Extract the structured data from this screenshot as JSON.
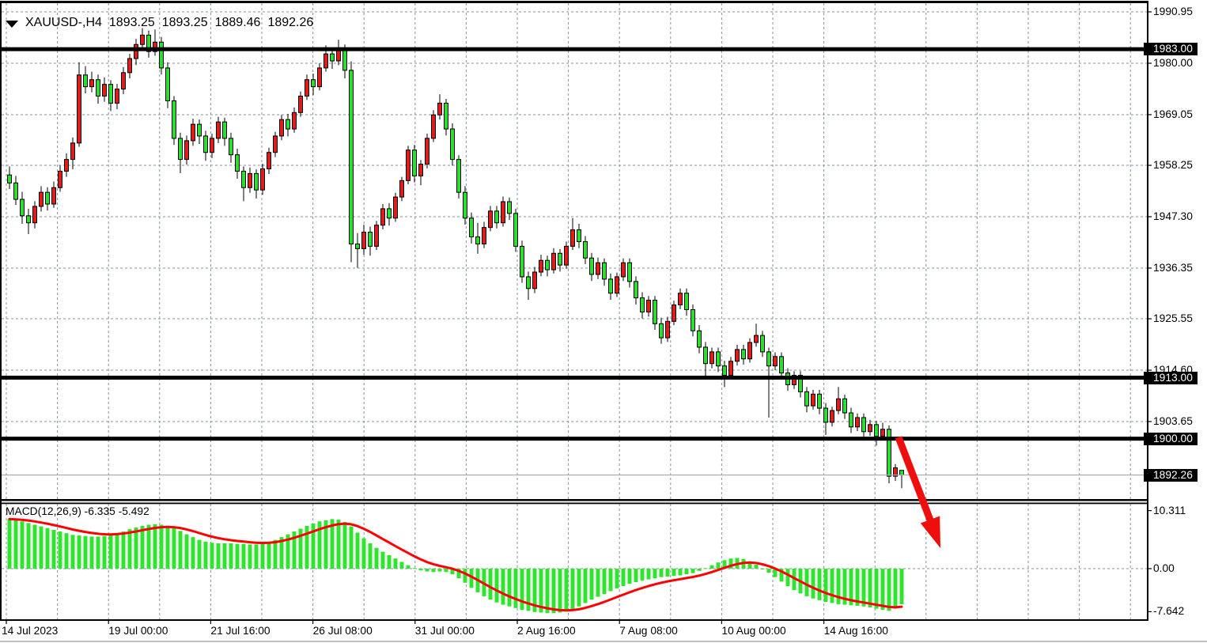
{
  "window": {
    "symbol_period": "XAUUSD-,H4",
    "open": "1893.25",
    "high": "1893.25",
    "low": "1889.46",
    "close": "1892.26"
  },
  "indicator": {
    "label": "MACD(12,26,9) -6.335 -5.492",
    "name": "MACD",
    "params": "12,26,9",
    "main_value": "-6.335",
    "signal_value": "-5.492",
    "axis_ticks": [
      {
        "label": "10.311",
        "value": 10.311
      },
      {
        "label": "0.00",
        "value": 0.0
      },
      {
        "label": "-7.642",
        "value": -7.642
      }
    ]
  },
  "price_axis": {
    "ticks": [
      {
        "label": "1990.95",
        "value": 1990.95,
        "highlighted": false
      },
      {
        "label": "1983.00",
        "value": 1983.0,
        "highlighted": true
      },
      {
        "label": "1980.00",
        "value": 1980.0,
        "highlighted": false
      },
      {
        "label": "1969.05",
        "value": 1969.05,
        "highlighted": false
      },
      {
        "label": "1958.25",
        "value": 1958.25,
        "highlighted": false
      },
      {
        "label": "1947.30",
        "value": 1947.3,
        "highlighted": false
      },
      {
        "label": "1936.35",
        "value": 1936.35,
        "highlighted": false
      },
      {
        "label": "1925.55",
        "value": 1925.55,
        "highlighted": false
      },
      {
        "label": "1914.60",
        "value": 1914.6,
        "highlighted": false
      },
      {
        "label": "1913.00",
        "value": 1913.0,
        "highlighted": true
      },
      {
        "label": "1903.65",
        "value": 1903.65,
        "highlighted": false
      },
      {
        "label": "1900.00",
        "value": 1900.0,
        "highlighted": true
      },
      {
        "label": "1892.26",
        "value": 1892.26,
        "highlighted": true
      }
    ]
  },
  "time_axis": {
    "labels": [
      "14 Jul 2023",
      "19 Jul 00:00",
      "21 Jul 16:00",
      "26 Jul 08:00",
      "31 Jul 00:00",
      "2 Aug 16:00",
      "7 Aug 08:00",
      "10 Aug 00:00",
      "14 Aug 16:00"
    ]
  },
  "levels": [
    {
      "price": 1983.0
    },
    {
      "price": 1913.0
    },
    {
      "price": 1900.0
    }
  ],
  "current_price": 1892.26,
  "colors": {
    "bull_body": "#df1d1d",
    "bear_body": "#2cdf2c",
    "macd_histogram": "#2fe62f",
    "macd_signal": "#ff0000",
    "arrow": "#ef0e0e",
    "grid": "#8593a5",
    "level_line": "#000000",
    "current_price_line": "#ababab",
    "axis_highlight_bg": "#000000",
    "axis_highlight_text": "#ffffff",
    "frame": "#000000",
    "window_edge": "#c0c0c0"
  },
  "chart_data": {
    "type": "candlestick",
    "symbol": "XAUUSD-",
    "timeframe": "H4",
    "title": "XAUUSD-,H4 1893.25 1893.25 1889.46 1892.26",
    "y_ticks": [
      1990.95,
      1980.0,
      1969.05,
      1958.25,
      1947.3,
      1936.35,
      1925.55,
      1914.6,
      1903.65
    ],
    "horizontal_lines": [
      1983.0,
      1913.0,
      1900.0
    ],
    "current_price": 1892.26,
    "macd_axis": [
      10.311,
      0.0,
      -7.642
    ],
    "candles": [
      [
        1956.2,
        1958.0,
        1953.2,
        1954.5
      ],
      [
        1954.5,
        1956.0,
        1949.8,
        1951.0
      ],
      [
        1951.0,
        1952.6,
        1945.8,
        1947.5
      ],
      [
        1947.5,
        1949.0,
        1943.6,
        1946.0
      ],
      [
        1946.0,
        1950.6,
        1944.8,
        1949.5
      ],
      [
        1949.5,
        1953.8,
        1948.4,
        1952.5
      ],
      [
        1952.5,
        1953.6,
        1948.6,
        1950.0
      ],
      [
        1950.0,
        1954.8,
        1949.2,
        1953.5
      ],
      [
        1953.5,
        1958.2,
        1952.6,
        1957.0
      ],
      [
        1957.0,
        1960.8,
        1955.8,
        1959.5
      ],
      [
        1959.5,
        1964.2,
        1957.4,
        1963.0
      ],
      [
        1963.0,
        1980.2,
        1962.2,
        1977.5
      ],
      [
        1977.5,
        1979.4,
        1973.6,
        1975.0
      ],
      [
        1975.0,
        1978.2,
        1973.8,
        1976.5
      ],
      [
        1976.5,
        1977.6,
        1971.4,
        1973.0
      ],
      [
        1973.0,
        1977.0,
        1971.8,
        1975.5
      ],
      [
        1975.5,
        1976.4,
        1969.8,
        1971.5
      ],
      [
        1971.5,
        1975.6,
        1970.2,
        1974.5
      ],
      [
        1974.5,
        1979.2,
        1973.4,
        1978.0
      ],
      [
        1978.0,
        1982.0,
        1976.8,
        1981.0
      ],
      [
        1981.0,
        1985.2,
        1979.6,
        1984.0
      ],
      [
        1984.0,
        1987.5,
        1982.8,
        1986.0
      ],
      [
        1986.0,
        1987.0,
        1981.2,
        1982.5
      ],
      [
        1982.5,
        1987.2,
        1981.6,
        1984.5
      ],
      [
        1984.5,
        1985.6,
        1977.6,
        1979.0
      ],
      [
        1979.0,
        1980.2,
        1970.4,
        1972.0
      ],
      [
        1972.0,
        1973.0,
        1962.6,
        1964.0
      ],
      [
        1964.0,
        1965.2,
        1956.6,
        1959.5
      ],
      [
        1959.5,
        1964.6,
        1958.4,
        1963.5
      ],
      [
        1963.5,
        1968.2,
        1962.4,
        1967.0
      ],
      [
        1967.0,
        1968.0,
        1962.8,
        1964.5
      ],
      [
        1964.5,
        1965.6,
        1959.2,
        1961.0
      ],
      [
        1961.0,
        1965.0,
        1959.8,
        1964.0
      ],
      [
        1964.0,
        1968.6,
        1963.0,
        1967.5
      ],
      [
        1967.5,
        1968.4,
        1962.4,
        1964.0
      ],
      [
        1964.0,
        1965.2,
        1958.8,
        1960.5
      ],
      [
        1960.5,
        1961.8,
        1955.4,
        1957.0
      ],
      [
        1957.0,
        1958.0,
        1950.6,
        1953.5
      ],
      [
        1953.5,
        1957.8,
        1952.4,
        1956.5
      ],
      [
        1956.5,
        1957.4,
        1951.2,
        1953.0
      ],
      [
        1953.0,
        1958.6,
        1952.0,
        1957.5
      ],
      [
        1957.5,
        1962.0,
        1956.4,
        1961.0
      ],
      [
        1961.0,
        1965.4,
        1960.0,
        1964.5
      ],
      [
        1964.5,
        1969.0,
        1963.6,
        1968.0
      ],
      [
        1968.0,
        1969.2,
        1964.4,
        1966.0
      ],
      [
        1966.0,
        1970.6,
        1965.2,
        1969.5
      ],
      [
        1969.5,
        1974.0,
        1968.6,
        1973.0
      ],
      [
        1973.0,
        1977.6,
        1972.2,
        1976.5
      ],
      [
        1976.5,
        1977.8,
        1973.2,
        1975.0
      ],
      [
        1975.0,
        1980.0,
        1974.2,
        1979.0
      ],
      [
        1979.0,
        1983.8,
        1978.2,
        1982.0
      ],
      [
        1982.0,
        1983.2,
        1978.8,
        1980.5
      ],
      [
        1980.5,
        1985.0,
        1979.6,
        1983.0
      ],
      [
        1983.0,
        1984.0,
        1976.8,
        1978.5
      ],
      [
        1978.5,
        1980.4,
        1937.6,
        1941.5
      ],
      [
        1941.5,
        1943.8,
        1936.4,
        1940.5
      ],
      [
        1940.5,
        1945.6,
        1939.2,
        1944.0
      ],
      [
        1944.0,
        1945.2,
        1939.0,
        1941.0
      ],
      [
        1941.0,
        1946.4,
        1940.2,
        1945.5
      ],
      [
        1945.5,
        1950.0,
        1944.6,
        1949.0
      ],
      [
        1949.0,
        1950.2,
        1945.4,
        1947.0
      ],
      [
        1947.0,
        1952.4,
        1946.2,
        1951.5
      ],
      [
        1951.5,
        1955.8,
        1950.6,
        1955.0
      ],
      [
        1955.0,
        1962.4,
        1954.2,
        1961.5
      ],
      [
        1961.5,
        1962.6,
        1954.6,
        1956.0
      ],
      [
        1956.0,
        1959.4,
        1954.0,
        1958.5
      ],
      [
        1958.5,
        1965.0,
        1957.6,
        1964.0
      ],
      [
        1964.0,
        1970.0,
        1963.2,
        1969.0
      ],
      [
        1969.0,
        1973.4,
        1968.0,
        1971.5
      ],
      [
        1971.5,
        1972.4,
        1964.6,
        1966.0
      ],
      [
        1966.0,
        1967.2,
        1958.2,
        1959.5
      ],
      [
        1959.5,
        1960.4,
        1951.2,
        1952.5
      ],
      [
        1952.5,
        1953.8,
        1945.6,
        1947.0
      ],
      [
        1947.0,
        1948.2,
        1941.6,
        1943.0
      ],
      [
        1943.0,
        1946.0,
        1939.4,
        1941.5
      ],
      [
        1941.5,
        1946.2,
        1940.6,
        1945.0
      ],
      [
        1945.0,
        1949.6,
        1944.2,
        1948.5
      ],
      [
        1948.5,
        1949.6,
        1944.8,
        1946.0
      ],
      [
        1946.0,
        1951.6,
        1945.2,
        1950.5
      ],
      [
        1950.5,
        1951.4,
        1946.6,
        1948.0
      ],
      [
        1948.0,
        1949.0,
        1939.8,
        1941.0
      ],
      [
        1941.0,
        1942.2,
        1933.2,
        1934.5
      ],
      [
        1934.5,
        1935.6,
        1929.6,
        1932.0
      ],
      [
        1932.0,
        1936.6,
        1931.0,
        1935.5
      ],
      [
        1935.5,
        1939.2,
        1934.6,
        1938.0
      ],
      [
        1938.0,
        1939.0,
        1934.6,
        1936.0
      ],
      [
        1936.0,
        1940.6,
        1935.2,
        1939.5
      ],
      [
        1939.5,
        1940.4,
        1935.6,
        1937.0
      ],
      [
        1937.0,
        1942.0,
        1936.2,
        1941.0
      ],
      [
        1941.0,
        1947.0,
        1940.2,
        1944.5
      ],
      [
        1944.5,
        1945.8,
        1940.6,
        1942.0
      ],
      [
        1942.0,
        1943.2,
        1937.2,
        1938.5
      ],
      [
        1938.5,
        1939.6,
        1933.6,
        1935.0
      ],
      [
        1935.0,
        1938.6,
        1934.0,
        1937.5
      ],
      [
        1937.5,
        1938.4,
        1932.6,
        1934.0
      ],
      [
        1934.0,
        1935.2,
        1929.6,
        1931.0
      ],
      [
        1931.0,
        1935.4,
        1930.2,
        1934.5
      ],
      [
        1934.5,
        1938.4,
        1933.6,
        1937.5
      ],
      [
        1937.5,
        1938.4,
        1932.2,
        1933.5
      ],
      [
        1933.5,
        1934.6,
        1928.6,
        1930.0
      ],
      [
        1930.0,
        1931.2,
        1925.6,
        1927.0
      ],
      [
        1927.0,
        1930.4,
        1926.0,
        1929.5
      ],
      [
        1929.5,
        1930.4,
        1923.2,
        1924.5
      ],
      [
        1924.5,
        1925.8,
        1920.2,
        1921.5
      ],
      [
        1921.5,
        1926.0,
        1920.6,
        1925.0
      ],
      [
        1925.0,
        1929.4,
        1924.2,
        1928.5
      ],
      [
        1928.5,
        1932.0,
        1927.6,
        1931.0
      ],
      [
        1931.0,
        1932.0,
        1926.2,
        1927.5
      ],
      [
        1927.5,
        1928.6,
        1921.8,
        1923.0
      ],
      [
        1923.0,
        1924.2,
        1918.2,
        1919.5
      ],
      [
        1919.5,
        1920.6,
        1912.6,
        1916.0
      ],
      [
        1916.0,
        1919.4,
        1915.0,
        1918.5
      ],
      [
        1918.5,
        1919.4,
        1914.2,
        1915.5
      ],
      [
        1915.5,
        1916.6,
        1911.0,
        1913.5
      ],
      [
        1913.5,
        1917.4,
        1912.8,
        1916.5
      ],
      [
        1916.5,
        1920.0,
        1915.6,
        1919.0
      ],
      [
        1919.0,
        1920.0,
        1915.8,
        1917.0
      ],
      [
        1917.0,
        1921.4,
        1916.2,
        1920.5
      ],
      [
        1920.5,
        1924.5,
        1919.6,
        1922.0
      ],
      [
        1922.0,
        1923.0,
        1917.4,
        1918.5
      ],
      [
        1918.5,
        1919.4,
        1904.5,
        1915.5
      ],
      [
        1915.5,
        1918.4,
        1914.6,
        1917.5
      ],
      [
        1917.5,
        1918.4,
        1912.8,
        1914.0
      ],
      [
        1914.0,
        1915.0,
        1910.2,
        1911.5
      ],
      [
        1911.5,
        1914.4,
        1910.6,
        1913.5
      ],
      [
        1913.5,
        1914.4,
        1908.8,
        1910.0
      ],
      [
        1910.0,
        1911.0,
        1905.6,
        1907.0
      ],
      [
        1907.0,
        1910.4,
        1906.2,
        1909.5
      ],
      [
        1909.5,
        1910.4,
        1905.2,
        1906.5
      ],
      [
        1906.5,
        1907.6,
        1900.8,
        1903.5
      ],
      [
        1903.5,
        1906.8,
        1902.6,
        1906.0
      ],
      [
        1906.0,
        1911.0,
        1905.2,
        1908.5
      ],
      [
        1908.5,
        1909.4,
        1904.2,
        1905.5
      ],
      [
        1905.5,
        1906.6,
        1901.2,
        1902.5
      ],
      [
        1902.5,
        1905.4,
        1901.6,
        1904.5
      ],
      [
        1904.5,
        1905.4,
        1900.2,
        1901.5
      ],
      [
        1901.5,
        1904.0,
        1900.6,
        1903.0
      ],
      [
        1903.0,
        1903.8,
        1898.5,
        1900.5
      ],
      [
        1900.5,
        1903.4,
        1899.6,
        1902.0
      ],
      [
        1902.0,
        1902.8,
        1890.5,
        1892.0
      ],
      [
        1892.0,
        1894.6,
        1891.0,
        1893.8
      ],
      [
        1893.25,
        1893.25,
        1889.46,
        1892.26
      ]
    ],
    "macd_histogram": [
      8.8,
      8.6,
      8.4,
      8.1,
      7.8,
      7.5,
      7.2,
      6.9,
      6.6,
      6.3,
      6.0,
      5.9,
      5.8,
      5.7,
      5.7,
      5.8,
      6.0,
      6.3,
      6.6,
      7.0,
      7.3,
      7.6,
      7.8,
      7.9,
      7.8,
      7.6,
      7.2,
      6.7,
      6.1,
      5.6,
      5.1,
      4.8,
      4.6,
      4.5,
      4.5,
      4.5,
      4.4,
      4.4,
      4.3,
      4.3,
      4.4,
      4.7,
      5.1,
      5.6,
      6.1,
      6.6,
      7.1,
      7.6,
      8.0,
      8.4,
      8.6,
      8.8,
      8.7,
      8.3,
      7.5,
      6.4,
      5.4,
      4.5,
      3.7,
      3.0,
      2.4,
      1.8,
      1.2,
      0.6,
      0.1,
      -0.3,
      -0.5,
      -0.6,
      -0.5,
      -0.6,
      -1.0,
      -1.7,
      -2.5,
      -3.4,
      -4.2,
      -4.9,
      -5.5,
      -6.0,
      -6.4,
      -6.7,
      -7.0,
      -7.3,
      -7.5,
      -7.7,
      -7.8,
      -7.9,
      -7.9,
      -7.8,
      -7.6,
      -7.2,
      -6.7,
      -6.1,
      -5.5,
      -5.0,
      -4.5,
      -4.0,
      -3.5,
      -3.1,
      -2.7,
      -2.4,
      -2.1,
      -1.9,
      -1.7,
      -1.5,
      -1.4,
      -1.3,
      -1.2,
      -1.0,
      -0.8,
      -0.4,
      0.1,
      0.6,
      1.1,
      1.5,
      1.8,
      1.9,
      1.7,
      1.3,
      0.7,
      0.0,
      -0.7,
      -1.5,
      -2.3,
      -3.1,
      -3.8,
      -4.4,
      -4.9,
      -5.3,
      -5.6,
      -5.9,
      -6.1,
      -6.3,
      -6.4,
      -6.5,
      -6.6,
      -6.7,
      -6.9,
      -7.1,
      -7.3,
      -7.5,
      -7.1,
      -6.335
    ],
    "annotations": {
      "down_arrow": {
        "from_price": 1900.3,
        "note": "red arrow pointing down-right across panel divider into indicator pane"
      }
    }
  }
}
